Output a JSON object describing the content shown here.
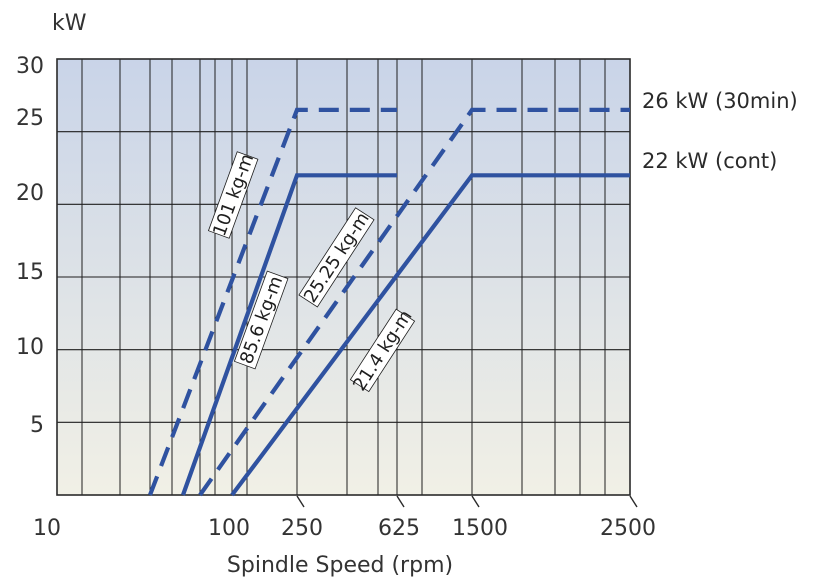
{
  "chart_data": {
    "type": "line",
    "ylabel": "kW",
    "xlabel": "Spindle Speed (rpm)",
    "ylim": [
      0,
      30
    ],
    "yticks": [
      "5",
      "10",
      "15",
      "20",
      "25",
      "30"
    ],
    "xticks": [
      "10",
      "100",
      "250",
      "625",
      "1500",
      "2500"
    ],
    "grid": true,
    "series": [
      {
        "name": "26 kW (30min)",
        "style": "dashed",
        "color": "#2f52a0",
        "curves": [
          {
            "torque_label": "101 kg-m",
            "points": [
              [
                64,
                0
              ],
              [
                250,
                26.5
              ],
              [
                625,
                26.5
              ]
            ]
          },
          {
            "torque_label": "25.25 kg-m",
            "points": [
              [
                82,
                0
              ],
              [
                1500,
                26.5
              ],
              [
                2500,
                26.5
              ]
            ]
          }
        ]
      },
      {
        "name": "22 kW (cont)",
        "style": "solid",
        "color": "#2f52a0",
        "curves": [
          {
            "torque_label": "85.6 kg-m",
            "points": [
              [
                70,
                0
              ],
              [
                250,
                22
              ],
              [
                625,
                22
              ]
            ]
          },
          {
            "torque_label": "21.4 kg-m",
            "points": [
              [
                100,
                0
              ],
              [
                1500,
                22
              ],
              [
                2500,
                22
              ]
            ]
          }
        ]
      }
    ]
  }
}
